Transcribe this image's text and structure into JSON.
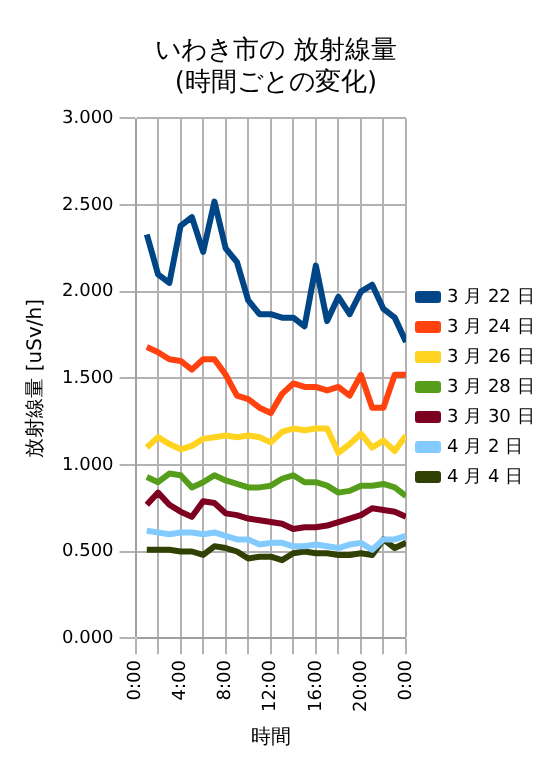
{
  "chart_data": {
    "type": "line",
    "title": [
      "いわき市の 放射線量",
      "(時間ごとの変化)"
    ],
    "xlabel": "時間",
    "ylabel": "放射線量 [uSv/h]",
    "x": [
      1,
      2,
      3,
      4,
      5,
      6,
      7,
      8,
      9,
      10,
      11,
      12,
      13,
      14,
      15,
      16,
      17,
      18,
      19,
      20,
      21,
      22,
      23,
      24
    ],
    "series": [
      {
        "name": "3 月 22 日",
        "color": "#004586",
        "values": [
          2.33,
          2.1,
          2.05,
          2.38,
          2.43,
          2.23,
          2.52,
          2.25,
          2.17,
          1.95,
          1.87,
          1.87,
          1.85,
          1.85,
          1.8,
          2.15,
          1.83,
          1.97,
          1.87,
          2.0,
          2.04,
          1.9,
          1.85,
          1.71
        ]
      },
      {
        "name": "3 月 24 日",
        "color": "#ff420e",
        "values": [
          1.68,
          1.65,
          1.61,
          1.6,
          1.55,
          1.61,
          1.61,
          1.52,
          1.4,
          1.38,
          1.33,
          1.3,
          1.41,
          1.47,
          1.45,
          1.45,
          1.43,
          1.45,
          1.4,
          1.52,
          1.33,
          1.33,
          1.52,
          1.52
        ]
      },
      {
        "name": "3 月 26 日",
        "color": "#ffd320",
        "values": [
          1.1,
          1.16,
          1.12,
          1.09,
          1.11,
          1.15,
          1.16,
          1.17,
          1.16,
          1.17,
          1.16,
          1.13,
          1.19,
          1.21,
          1.2,
          1.21,
          1.21,
          1.07,
          1.12,
          1.18,
          1.1,
          1.14,
          1.08,
          1.17
        ]
      },
      {
        "name": "3 月 28 日",
        "color": "#579d1c",
        "values": [
          0.93,
          0.9,
          0.95,
          0.94,
          0.87,
          0.9,
          0.94,
          0.91,
          0.89,
          0.87,
          0.87,
          0.88,
          0.92,
          0.94,
          0.9,
          0.9,
          0.88,
          0.84,
          0.85,
          0.88,
          0.88,
          0.89,
          0.87,
          0.82
        ]
      },
      {
        "name": "3 月 30 日",
        "color": "#7e0021",
        "values": [
          0.77,
          0.84,
          0.77,
          0.73,
          0.7,
          0.79,
          0.78,
          0.72,
          0.71,
          0.69,
          0.68,
          0.67,
          0.66,
          0.63,
          0.64,
          0.64,
          0.65,
          0.67,
          0.69,
          0.71,
          0.75,
          0.74,
          0.73,
          0.7
        ]
      },
      {
        "name": "4 月 2 日",
        "color": "#83caff",
        "values": [
          0.62,
          0.61,
          0.6,
          0.61,
          0.61,
          0.6,
          0.61,
          0.59,
          0.57,
          0.57,
          0.54,
          0.55,
          0.55,
          0.53,
          0.53,
          0.54,
          0.53,
          0.52,
          0.54,
          0.55,
          0.51,
          0.57,
          0.57,
          0.59
        ]
      },
      {
        "name": "4 月 4 日",
        "color": "#314004",
        "values": [
          0.51,
          0.51,
          0.51,
          0.5,
          0.5,
          0.48,
          0.53,
          0.52,
          0.5,
          0.46,
          0.47,
          0.47,
          0.45,
          0.49,
          0.5,
          0.49,
          0.49,
          0.48,
          0.48,
          0.49,
          0.48,
          0.57,
          0.52,
          0.55
        ]
      }
    ],
    "xlim": [
      0,
      24
    ],
    "xticks": [
      {
        "value": 0,
        "label": "0:00"
      },
      {
        "value": 2,
        "label": null
      },
      {
        "value": 4,
        "label": "4:00"
      },
      {
        "value": 6,
        "label": null
      },
      {
        "value": 8,
        "label": "8:00"
      },
      {
        "value": 10,
        "label": null
      },
      {
        "value": 12,
        "label": "12:00"
      },
      {
        "value": 14,
        "label": null
      },
      {
        "value": 16,
        "label": "16:00"
      },
      {
        "value": 18,
        "label": null
      },
      {
        "value": 20,
        "label": "20:00"
      },
      {
        "value": 22,
        "label": null
      },
      {
        "value": 24,
        "label": "0:00"
      }
    ],
    "ylim": [
      0,
      3
    ],
    "yticks": [
      {
        "value": 0,
        "label": "0.000"
      },
      {
        "value": 0.5,
        "label": "0.500"
      },
      {
        "value": 1,
        "label": "1.000"
      },
      {
        "value": 1.5,
        "label": "1.500"
      },
      {
        "value": 2,
        "label": "2.000"
      },
      {
        "value": 2.5,
        "label": "2.500"
      },
      {
        "value": 3,
        "label": "3.000"
      }
    ],
    "grid": true,
    "legend": "right",
    "marker": "none",
    "line_style": "solid"
  }
}
